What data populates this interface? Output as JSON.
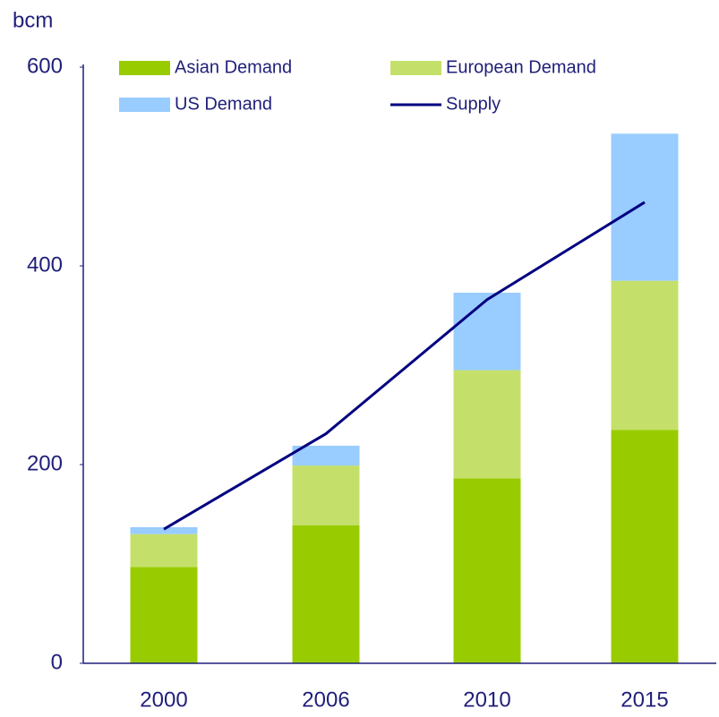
{
  "chart_data": {
    "type": "bar",
    "stacked": true,
    "y_label": "bcm",
    "categories": [
      "2000",
      "2006",
      "2010",
      "2015"
    ],
    "series": [
      {
        "name": "Asian Demand",
        "color": "#99cc00",
        "values": [
          97,
          139,
          186,
          235
        ]
      },
      {
        "name": "European Demand",
        "color": "#c5e06a",
        "values": [
          33,
          60,
          109,
          150
        ]
      },
      {
        "name": "US Demand",
        "color": "#99ccff",
        "values": [
          7,
          20,
          78,
          148
        ]
      },
      {
        "name": "Supply",
        "type": "line",
        "color": "#000080",
        "values": [
          135,
          231,
          366,
          464
        ]
      }
    ],
    "ylim": [
      0,
      600
    ],
    "yticks": [
      0,
      200,
      400,
      600
    ]
  }
}
